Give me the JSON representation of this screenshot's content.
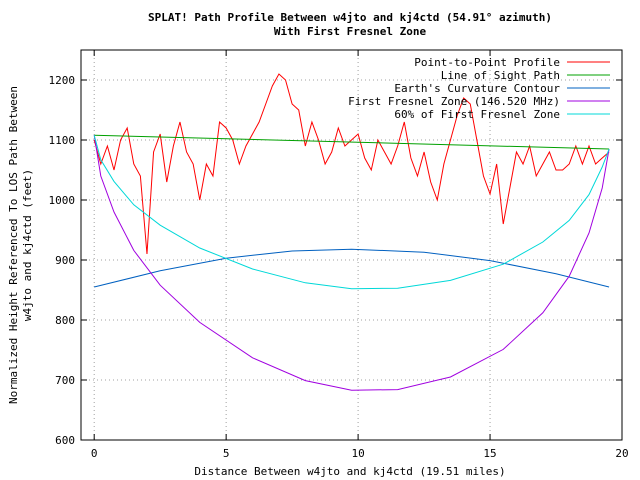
{
  "chart_data": {
    "type": "line",
    "title": "SPLAT! Path Profile Between w4jto and kj4ctd (54.91° azimuth)",
    "subtitle": "With First Fresnel Zone",
    "xlabel": "Distance Between w4jto and kj4ctd (19.51 miles)",
    "ylabel_lines": [
      "Normalized Height Referenced To LOS Path Between",
      "w4jto and kj4ctd (feet)"
    ],
    "xlim": [
      -0.5,
      20
    ],
    "ylim": [
      600,
      1250
    ],
    "x_ticks": [
      0,
      5,
      10,
      15,
      20
    ],
    "y_ticks": [
      600,
      700,
      800,
      900,
      1000,
      1100,
      1200
    ],
    "x_tick_labels": [
      "0",
      "5",
      "10",
      "15",
      "20"
    ],
    "y_tick_labels": [
      "600",
      "700",
      "800",
      "900",
      "1000",
      "1100",
      "1200"
    ],
    "grid": true,
    "legend_position": "top-right",
    "series": [
      {
        "name": "Point-to-Point Profile",
        "color": "#ff0000",
        "x": [
          0,
          0.25,
          0.5,
          0.75,
          1,
          1.25,
          1.5,
          1.75,
          2,
          2.25,
          2.5,
          2.75,
          3,
          3.25,
          3.5,
          3.75,
          4,
          4.25,
          4.5,
          4.75,
          5,
          5.25,
          5.5,
          5.75,
          6,
          6.25,
          6.5,
          6.75,
          7,
          7.25,
          7.5,
          7.75,
          8,
          8.25,
          8.5,
          8.75,
          9,
          9.25,
          9.5,
          9.75,
          10,
          10.25,
          10.5,
          10.75,
          11,
          11.25,
          11.5,
          11.75,
          12,
          12.25,
          12.5,
          12.75,
          13,
          13.25,
          13.5,
          13.75,
          14,
          14.25,
          14.5,
          14.75,
          15,
          15.25,
          15.5,
          15.75,
          16,
          16.25,
          16.5,
          16.75,
          17,
          17.25,
          17.5,
          17.75,
          18,
          18.25,
          18.5,
          18.75,
          19,
          19.25,
          19.51
        ],
        "y": [
          1100,
          1060,
          1090,
          1050,
          1100,
          1120,
          1060,
          1040,
          910,
          1080,
          1110,
          1030,
          1090,
          1130,
          1080,
          1060,
          1000,
          1060,
          1040,
          1130,
          1120,
          1100,
          1060,
          1090,
          1110,
          1130,
          1160,
          1190,
          1210,
          1200,
          1160,
          1150,
          1090,
          1130,
          1100,
          1060,
          1080,
          1120,
          1090,
          1100,
          1110,
          1070,
          1050,
          1100,
          1080,
          1060,
          1090,
          1130,
          1070,
          1040,
          1080,
          1030,
          1000,
          1060,
          1100,
          1140,
          1170,
          1160,
          1100,
          1040,
          1010,
          1060,
          960,
          1020,
          1080,
          1060,
          1090,
          1040,
          1060,
          1080,
          1050,
          1050,
          1060,
          1090,
          1060,
          1090,
          1060,
          1070,
          1080
        ]
      },
      {
        "name": "Line of Sight Path",
        "color": "#00a000",
        "x": [
          0,
          19.51
        ],
        "y": [
          1108,
          1085
        ]
      },
      {
        "name": "Earth's Curvature Contour",
        "color": "#0060c0",
        "x": [
          0,
          2.5,
          5,
          7.5,
          9.755,
          12.5,
          15,
          17.5,
          19.51
        ],
        "y": [
          855,
          882,
          903,
          915,
          918,
          913,
          899,
          877,
          855
        ]
      },
      {
        "name": "First Fresnel Zone (146.520 MHz)",
        "color": "#a000e0",
        "x": [
          0,
          0.25,
          0.75,
          1.5,
          2.5,
          4,
          6,
          8,
          9.755,
          11.5,
          13.5,
          15.5,
          17,
          18,
          18.75,
          19.25,
          19.51
        ],
        "y": [
          1108,
          1040,
          980,
          916,
          858,
          796,
          737,
          699,
          683,
          684,
          705,
          751,
          812,
          873,
          945,
          1020,
          1085
        ]
      },
      {
        "name": "60% of First Fresnel Zone",
        "color": "#00d8d8",
        "x": [
          0,
          0.25,
          0.75,
          1.5,
          2.5,
          4,
          6,
          8,
          9.755,
          11.5,
          13.5,
          15.5,
          17,
          18,
          18.75,
          19.25,
          19.51
        ],
        "y": [
          1108,
          1067,
          1031,
          992,
          958,
          920,
          885,
          862,
          852,
          853,
          866,
          893,
          930,
          966,
          1009,
          1055,
          1085
        ]
      }
    ]
  }
}
